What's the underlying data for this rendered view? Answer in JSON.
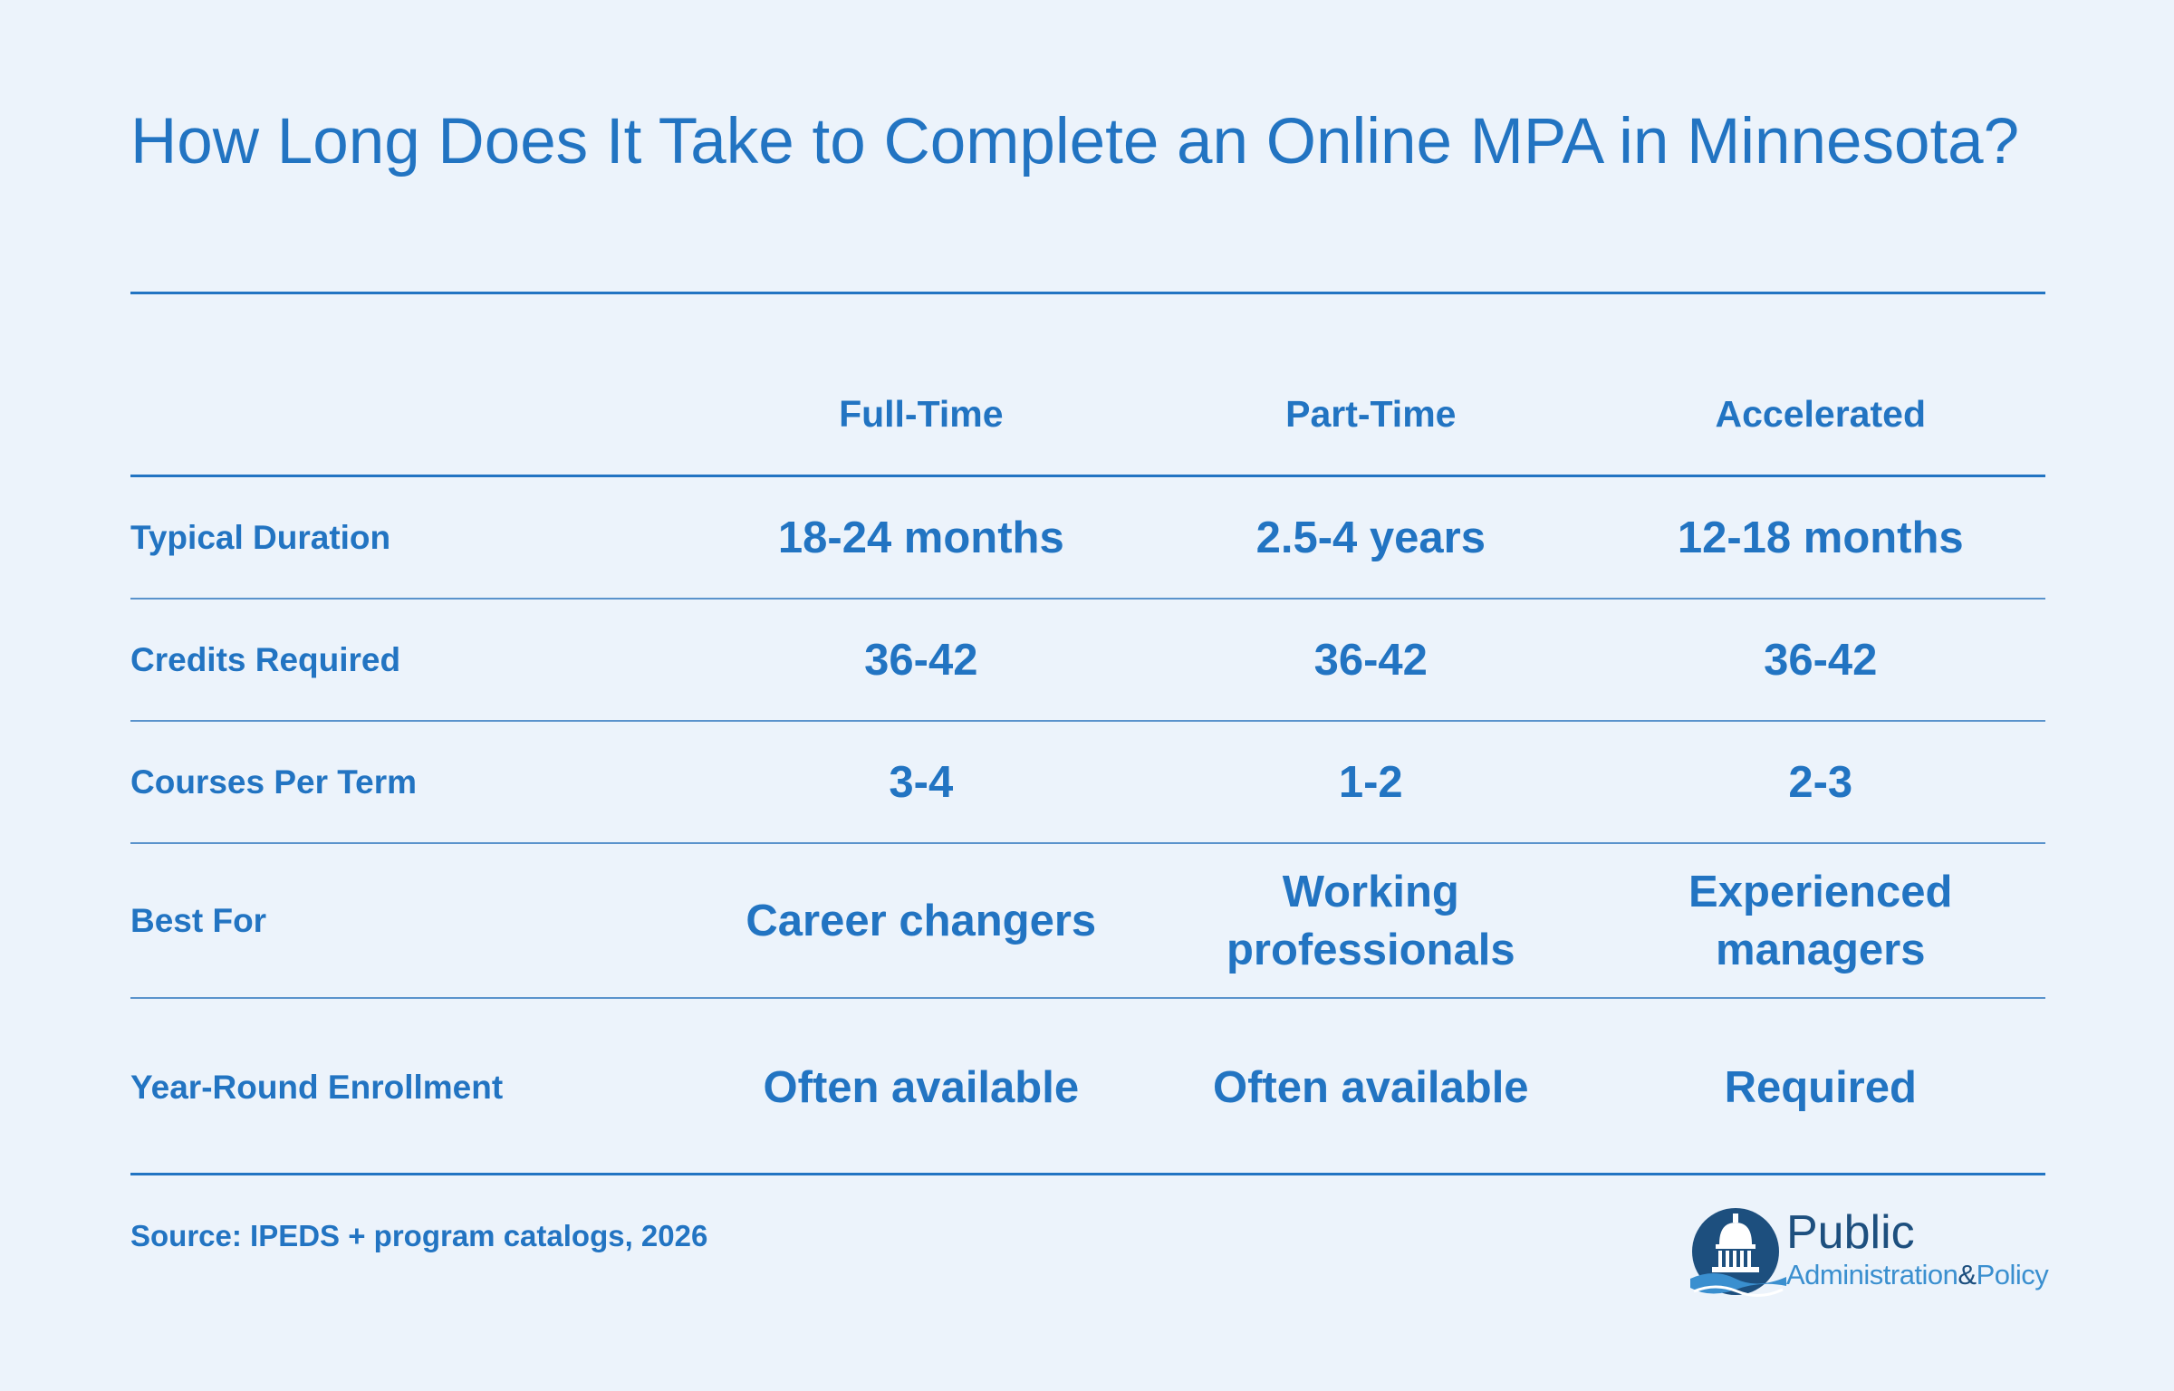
{
  "title": "How Long Does It Take to Complete an Online MPA in Minnesota?",
  "table": {
    "columns": [
      "Full-Time",
      "Part-Time",
      "Accelerated"
    ],
    "rows": [
      {
        "label": "Typical Duration",
        "values": [
          "18-24 months",
          "2.5-4 years",
          "12-18 months"
        ]
      },
      {
        "label": "Credits Required",
        "values": [
          "36-42",
          "36-42",
          "36-42"
        ]
      },
      {
        "label": "Courses Per Term",
        "values": [
          "3-4",
          "1-2",
          "2-3"
        ]
      },
      {
        "label": "Best For",
        "values": [
          "Career changers",
          "Working professionals",
          "Experienced managers"
        ]
      },
      {
        "label": "Year-Round Enrollment",
        "values": [
          "Often available",
          "Often available",
          "Required"
        ]
      }
    ]
  },
  "source": "Source: IPEDS + program catalogs, 2026",
  "logo": {
    "word1": "Public",
    "word2": "Administration",
    "amp": "&",
    "word3": "Policy"
  },
  "colors": {
    "background": "#ecf3fb",
    "accent": "#2274c2",
    "logo_dark": "#1d4f7e",
    "logo_light": "#3a8fcf"
  }
}
